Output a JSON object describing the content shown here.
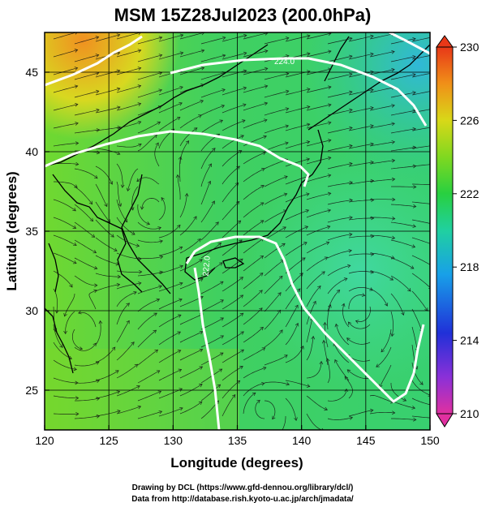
{
  "title": "MSM 15Z28Jul2023 (200.0hPa)",
  "x_axis": {
    "label": "Longitude (degrees)",
    "range": [
      120,
      150
    ],
    "ticks": [
      120,
      125,
      130,
      135,
      140,
      145,
      150
    ]
  },
  "y_axis": {
    "label": "Latitude  (degrees)",
    "range": [
      22.5,
      47.5
    ],
    "ticks": [
      25,
      30,
      35,
      40,
      45
    ]
  },
  "colorbar": {
    "range": [
      210,
      230
    ],
    "tick_labels": [
      "230",
      "226",
      "222",
      "218",
      "214",
      "210"
    ],
    "colors": [
      "#e8348c",
      "#9b30d0",
      "#2038d8",
      "#1aa8e8",
      "#1cd8b0",
      "#28d050",
      "#7ad820",
      "#d8d818",
      "#f0a018",
      "#e84818"
    ]
  },
  "contour_labels": [
    "224.0",
    "222.0"
  ],
  "credits": {
    "line1": "Drawing by DCL (https://www.gfd-dennou.org/library/dcl/)",
    "line2": "Data from http://database.rish.kyoto-u.ac.jp/arch/jmadata/"
  }
}
